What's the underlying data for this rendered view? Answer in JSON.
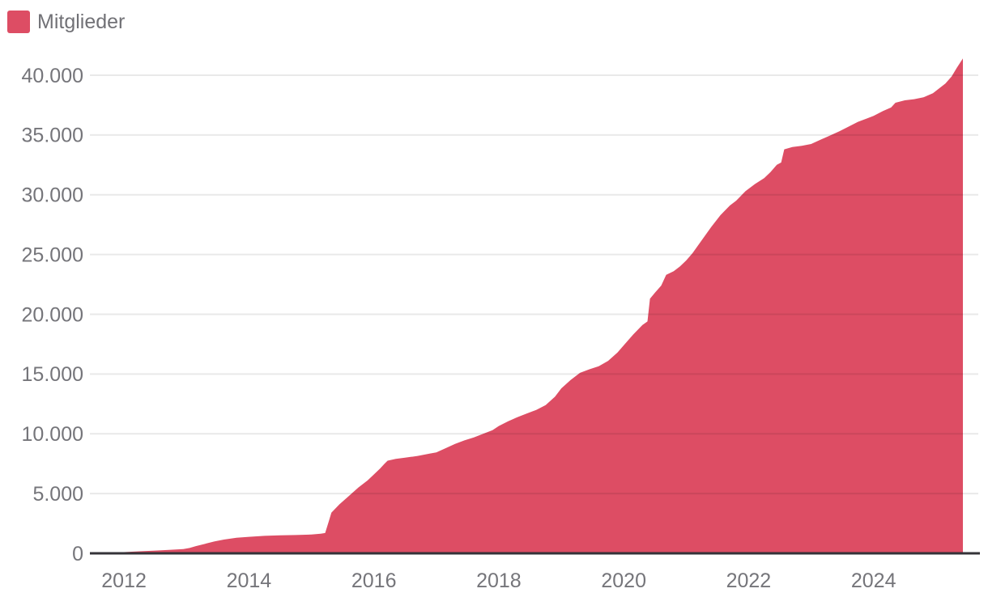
{
  "page": {
    "background": "#ffffff"
  },
  "legend": {
    "items": [
      {
        "label": "Mitglieder",
        "color": "#dd4d64"
      }
    ]
  },
  "chart_data": {
    "type": "area",
    "title": "",
    "xlabel": "",
    "ylabel": "",
    "grid": "horizontal",
    "legend_position": "top-left",
    "xlim": [
      2011.7,
      2025.43
    ],
    "ylim": [
      0,
      40000
    ],
    "x_ticks": [
      2012,
      2014,
      2016,
      2018,
      2020,
      2022,
      2024
    ],
    "y_ticks": [
      {
        "value": 0,
        "label": "0"
      },
      {
        "value": 5000,
        "label": "5.000"
      },
      {
        "value": 10000,
        "label": "10.000"
      },
      {
        "value": 15000,
        "label": "15.000"
      },
      {
        "value": 20000,
        "label": "20.000"
      },
      {
        "value": 25000,
        "label": "25.000"
      },
      {
        "value": 30000,
        "label": "30.000"
      },
      {
        "value": 35000,
        "label": "35.000"
      },
      {
        "value": 40000,
        "label": "40.000"
      }
    ],
    "series": [
      {
        "name": "Mitglieder",
        "color": "#dd4d64",
        "points": [
          [
            2011.7,
            0
          ],
          [
            2011.85,
            40
          ],
          [
            2012.0,
            100
          ],
          [
            2012.25,
            170
          ],
          [
            2012.5,
            230
          ],
          [
            2012.75,
            300
          ],
          [
            2012.95,
            350
          ],
          [
            2013.05,
            450
          ],
          [
            2013.15,
            600
          ],
          [
            2013.3,
            800
          ],
          [
            2013.45,
            1000
          ],
          [
            2013.6,
            1150
          ],
          [
            2013.8,
            1300
          ],
          [
            2014.0,
            1380
          ],
          [
            2014.25,
            1460
          ],
          [
            2014.5,
            1510
          ],
          [
            2014.75,
            1530
          ],
          [
            2015.0,
            1570
          ],
          [
            2015.15,
            1640
          ],
          [
            2015.22,
            1700
          ],
          [
            2015.28,
            2700
          ],
          [
            2015.32,
            3400
          ],
          [
            2015.45,
            4100
          ],
          [
            2015.6,
            4800
          ],
          [
            2015.75,
            5500
          ],
          [
            2015.9,
            6100
          ],
          [
            2016.0,
            6600
          ],
          [
            2016.1,
            7100
          ],
          [
            2016.17,
            7500
          ],
          [
            2016.22,
            7750
          ],
          [
            2016.35,
            7900
          ],
          [
            2016.5,
            8000
          ],
          [
            2016.7,
            8150
          ],
          [
            2016.9,
            8350
          ],
          [
            2017.0,
            8450
          ],
          [
            2017.15,
            8800
          ],
          [
            2017.3,
            9150
          ],
          [
            2017.45,
            9450
          ],
          [
            2017.6,
            9700
          ],
          [
            2017.75,
            10000
          ],
          [
            2017.9,
            10300
          ],
          [
            2018.0,
            10650
          ],
          [
            2018.15,
            11050
          ],
          [
            2018.3,
            11400
          ],
          [
            2018.45,
            11700
          ],
          [
            2018.6,
            12000
          ],
          [
            2018.75,
            12400
          ],
          [
            2018.9,
            13100
          ],
          [
            2019.0,
            13800
          ],
          [
            2019.15,
            14500
          ],
          [
            2019.3,
            15100
          ],
          [
            2019.45,
            15400
          ],
          [
            2019.6,
            15650
          ],
          [
            2019.75,
            16100
          ],
          [
            2019.9,
            16800
          ],
          [
            2020.0,
            17400
          ],
          [
            2020.15,
            18300
          ],
          [
            2020.3,
            19100
          ],
          [
            2020.38,
            19400
          ],
          [
            2020.42,
            21300
          ],
          [
            2020.5,
            21800
          ],
          [
            2020.6,
            22400
          ],
          [
            2020.68,
            23300
          ],
          [
            2020.8,
            23600
          ],
          [
            2020.9,
            24000
          ],
          [
            2021.0,
            24500
          ],
          [
            2021.1,
            25100
          ],
          [
            2021.25,
            26200
          ],
          [
            2021.4,
            27300
          ],
          [
            2021.55,
            28300
          ],
          [
            2021.7,
            29100
          ],
          [
            2021.8,
            29500
          ],
          [
            2021.95,
            30300
          ],
          [
            2022.1,
            30900
          ],
          [
            2022.25,
            31400
          ],
          [
            2022.35,
            31900
          ],
          [
            2022.45,
            32500
          ],
          [
            2022.52,
            32700
          ],
          [
            2022.57,
            33800
          ],
          [
            2022.7,
            34000
          ],
          [
            2022.85,
            34100
          ],
          [
            2023.0,
            34250
          ],
          [
            2023.15,
            34600
          ],
          [
            2023.3,
            34950
          ],
          [
            2023.45,
            35300
          ],
          [
            2023.6,
            35700
          ],
          [
            2023.75,
            36100
          ],
          [
            2023.9,
            36400
          ],
          [
            2024.0,
            36600
          ],
          [
            2024.15,
            37000
          ],
          [
            2024.28,
            37300
          ],
          [
            2024.35,
            37700
          ],
          [
            2024.5,
            37900
          ],
          [
            2024.65,
            38000
          ],
          [
            2024.8,
            38150
          ],
          [
            2024.95,
            38500
          ],
          [
            2025.05,
            38900
          ],
          [
            2025.15,
            39300
          ],
          [
            2025.25,
            39900
          ],
          [
            2025.33,
            40600
          ],
          [
            2025.43,
            41400
          ]
        ]
      }
    ],
    "colors": {
      "axis_text": "#75757a",
      "gridline": "rgba(0,0,0,0.085)",
      "axis_line": "#343338",
      "background": "#ffffff"
    }
  }
}
